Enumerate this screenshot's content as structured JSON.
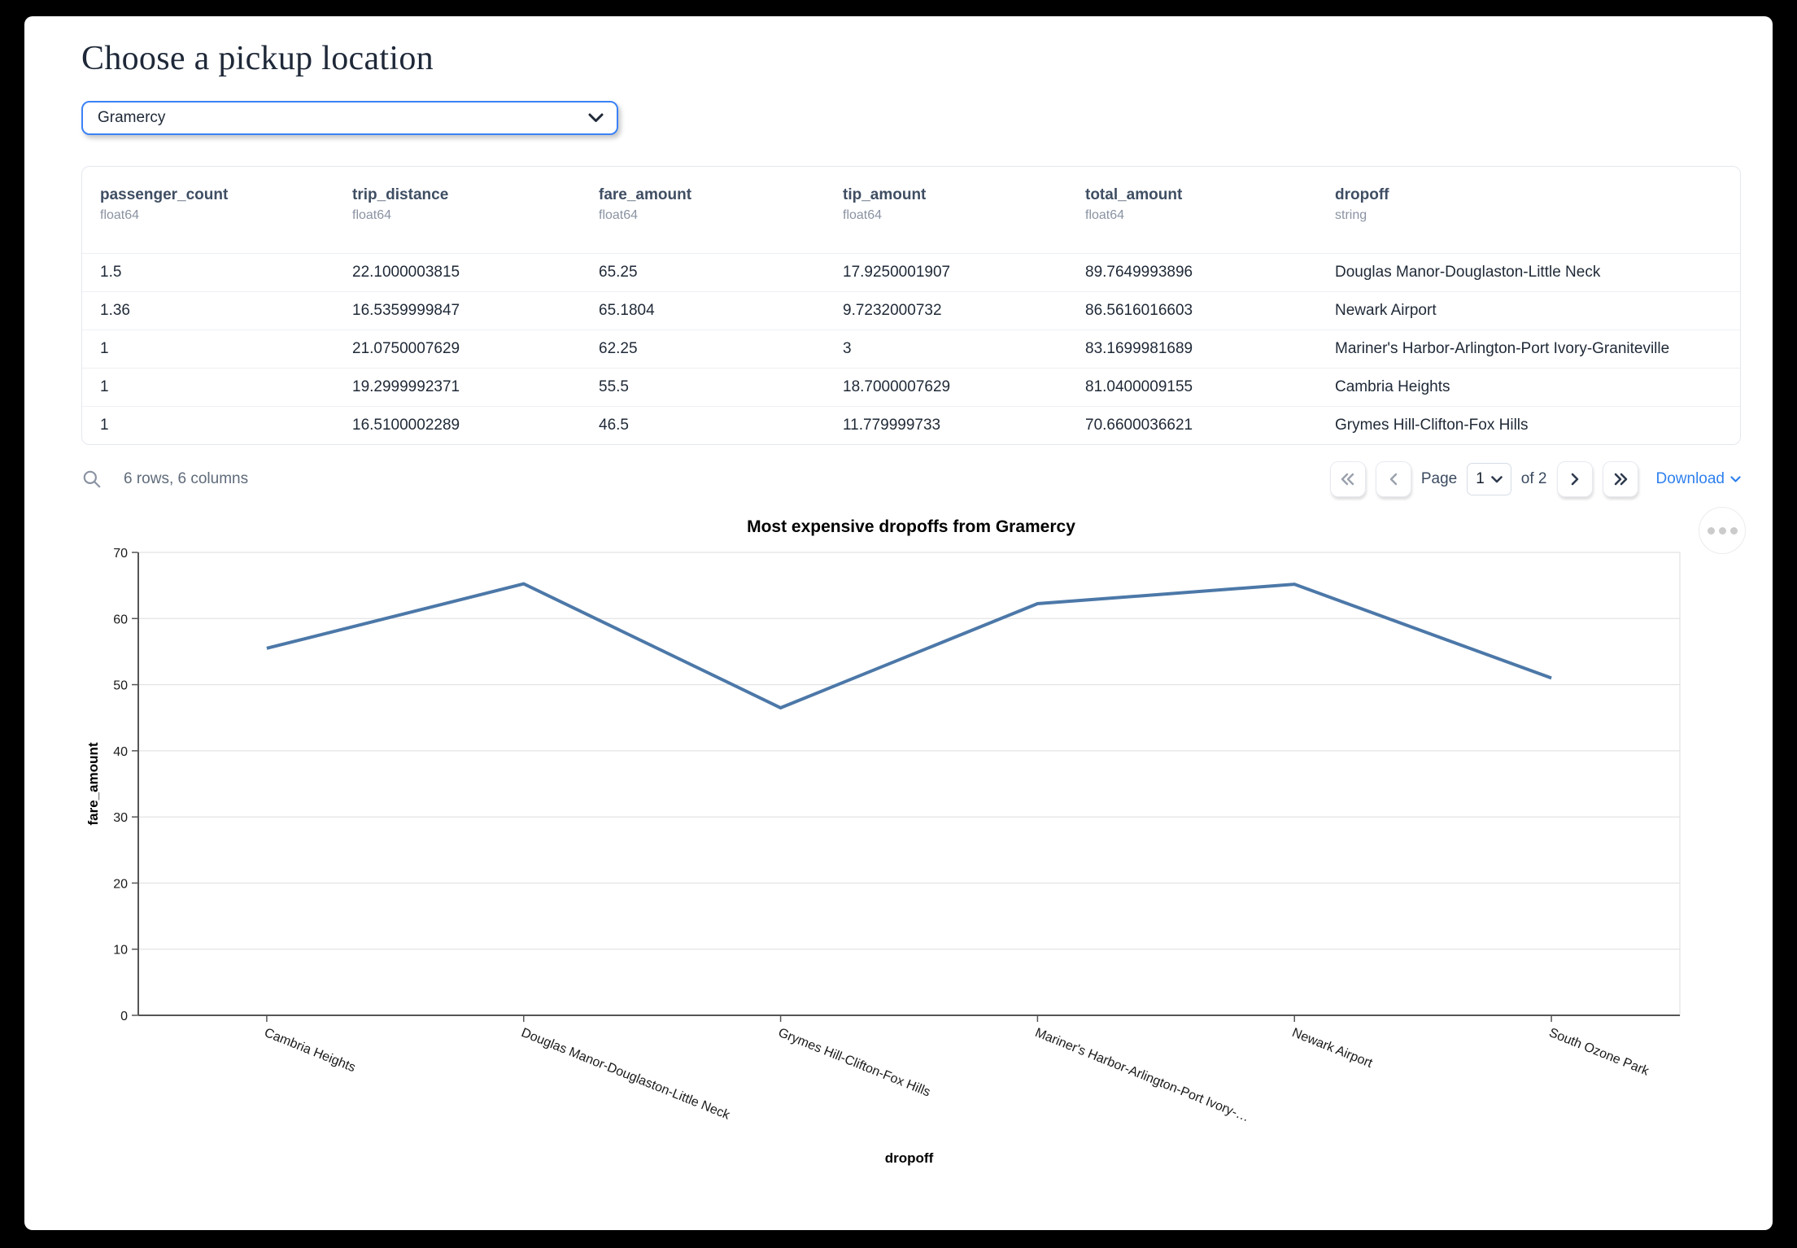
{
  "page": {
    "title": "Choose a pickup location"
  },
  "picker": {
    "value": "Gramercy"
  },
  "table": {
    "columns": [
      {
        "name": "passenger_count",
        "dtype": "float64"
      },
      {
        "name": "trip_distance",
        "dtype": "float64"
      },
      {
        "name": "fare_amount",
        "dtype": "float64"
      },
      {
        "name": "tip_amount",
        "dtype": "float64"
      },
      {
        "name": "total_amount",
        "dtype": "float64"
      },
      {
        "name": "dropoff",
        "dtype": "string"
      }
    ],
    "rows": [
      [
        "1.5",
        "22.1000003815",
        "65.25",
        "17.9250001907",
        "89.7649993896",
        "Douglas Manor-Douglaston-Little Neck"
      ],
      [
        "1.36",
        "16.5359999847",
        "65.1804",
        "9.7232000732",
        "86.5616016603",
        "Newark Airport"
      ],
      [
        "1",
        "21.0750007629",
        "62.25",
        "3",
        "83.1699981689",
        "Mariner's Harbor-Arlington-Port Ivory-Graniteville"
      ],
      [
        "1",
        "19.2999992371",
        "55.5",
        "18.7000007629",
        "81.0400009155",
        "Cambria Heights"
      ],
      [
        "1",
        "16.5100002289",
        "46.5",
        "11.779999733",
        "70.6600036621",
        "Grymes Hill-Clifton-Fox Hills"
      ]
    ],
    "summary": "6 rows, 6 columns",
    "pagination": {
      "page_label": "Page",
      "current_page": "1",
      "total_label": "of 2",
      "download_label": "Download"
    }
  },
  "chart_data": {
    "type": "line",
    "title": "Most expensive dropoffs from Gramercy",
    "xlabel": "dropoff",
    "ylabel": "fare_amount",
    "categories": [
      "Cambria Heights",
      "Douglas Manor-Douglaston-Little Neck",
      "Grymes Hill-Clifton-Fox Hills",
      "Mariner's Harbor-Arlington-Port Ivory-…",
      "Newark Airport",
      "South Ozone Park"
    ],
    "values": [
      55.5,
      65.25,
      46.5,
      62.25,
      65.1804,
      51
    ],
    "ylim": [
      0,
      70
    ],
    "ytick_step": 10,
    "grid": true,
    "legend": "none",
    "line_color": "#4c78a8"
  },
  "colors": {
    "select_focus_border": "#3b82f6",
    "link_blue": "#2f80ed",
    "chart_line": "#4c78a8"
  }
}
